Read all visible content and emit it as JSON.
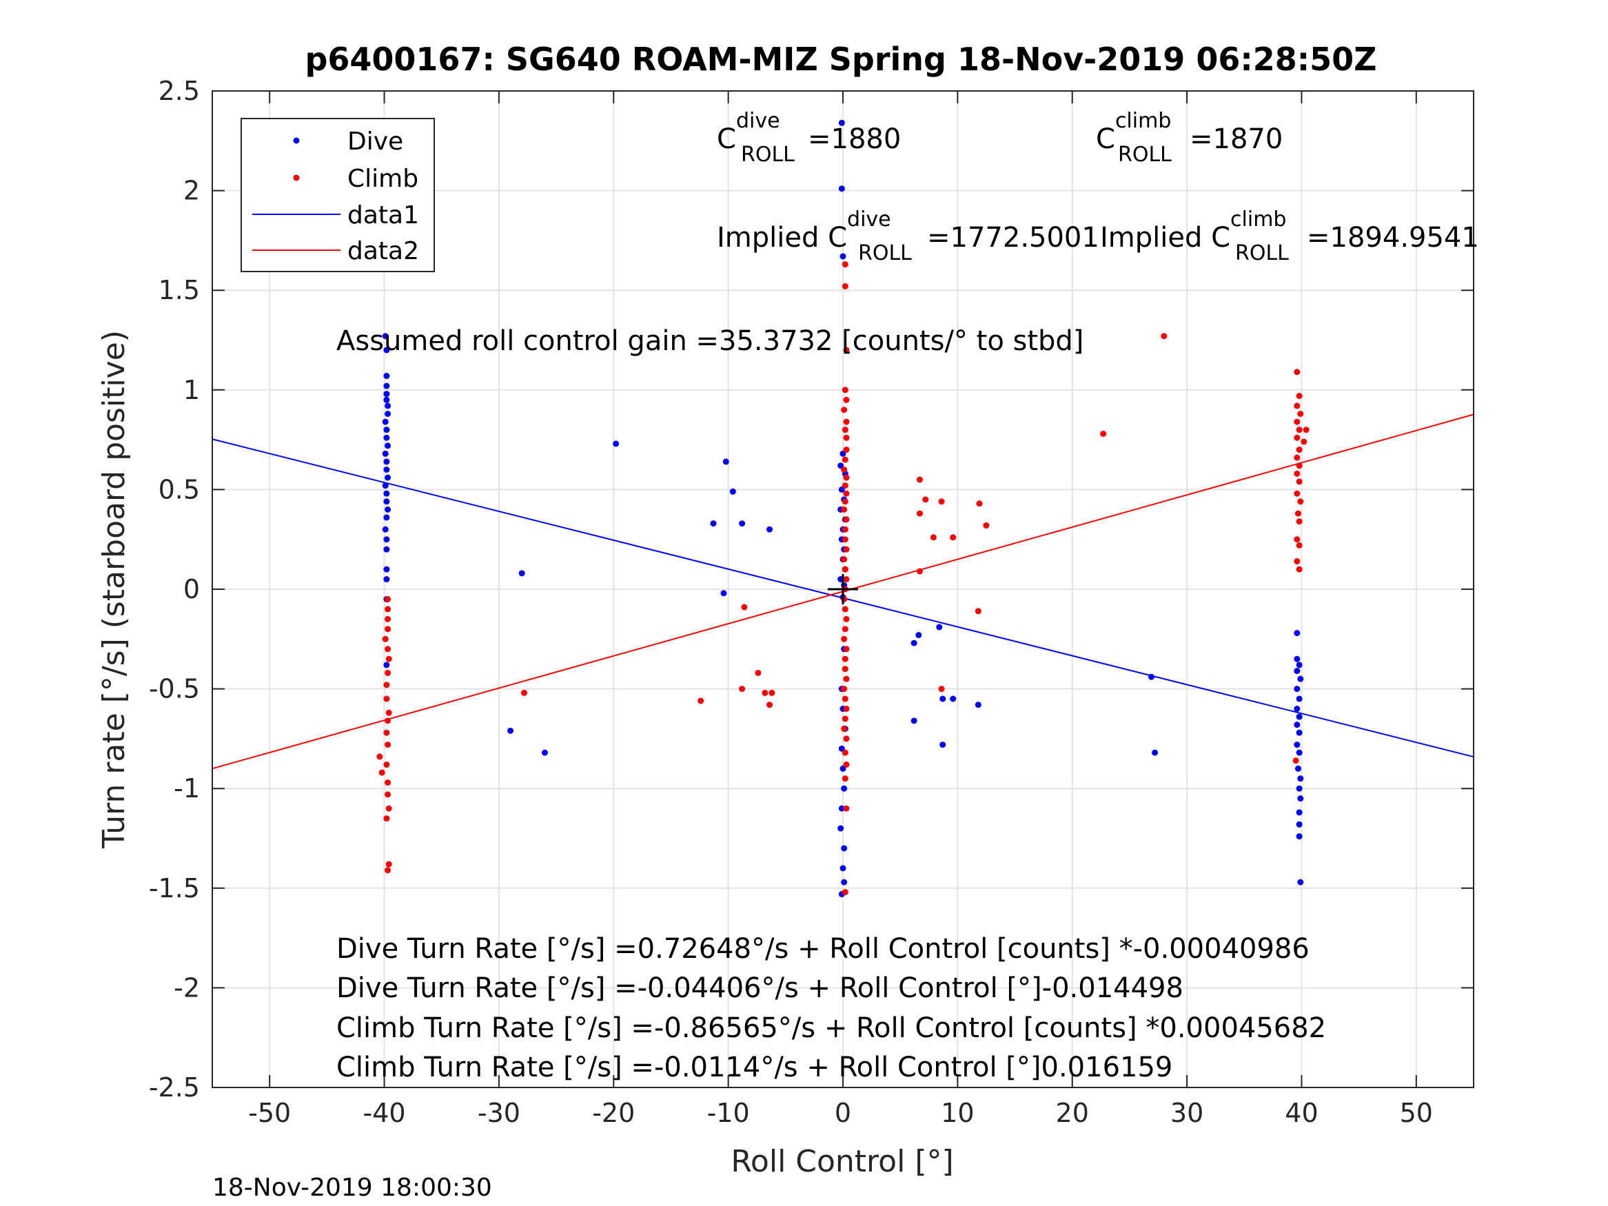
{
  "footer_timestamp": "18-Nov-2019 18:00:30",
  "annotations": {
    "c_dive_base": "C",
    "c_dive_sup": "dive",
    "c_dive_subscript": "ROLL",
    "c_dive_value": "=1880",
    "c_climb_base": "C",
    "c_climb_sup": "climb",
    "c_climb_subscript": "ROLL",
    "c_climb_value": "=1870",
    "implied_dive_prefix": "Implied C",
    "implied_dive_sup": "dive",
    "implied_dive_subscript": "ROLL",
    "implied_dive_value": "=1772.5001",
    "implied_climb_prefix": "Implied C",
    "implied_climb_sup": "climb",
    "implied_climb_subscript": "ROLL",
    "implied_climb_value": "=1894.9541",
    "gain": "Assumed roll control gain =35.3732 [counts/° to stbd]",
    "eq_dive_counts": "Dive Turn Rate [°/s] =0.72648°/s + Roll Control [counts] *-0.00040986",
    "eq_dive_deg": "Dive Turn Rate [°/s] =-0.04406°/s + Roll Control [°]-0.014498",
    "eq_climb_counts": "Climb Turn Rate [°/s] =-0.86565°/s + Roll Control [counts] *0.00045682",
    "eq_climb_deg": "Climb Turn Rate [°/s] =-0.0114°/s + Roll Control [°]0.016159"
  },
  "chart_data": {
    "type": "scatter",
    "title": "p6400167: SG640 ROAM-MIZ Spring 18-Nov-2019 06:28:50Z",
    "xlabel": "Roll Control [°]",
    "ylabel": "Turn rate [°/s] (starboard positive)",
    "xlim": [
      -55,
      55
    ],
    "ylim": [
      -2.5,
      2.5
    ],
    "xticks": [
      -50,
      -40,
      -30,
      -20,
      -10,
      0,
      10,
      20,
      30,
      40,
      50
    ],
    "yticks": [
      -2.5,
      -2,
      -1.5,
      -1,
      -0.5,
      0,
      0.5,
      1,
      1.5,
      2,
      2.5
    ],
    "xtick_labels": [
      "-50",
      "-40",
      "-30",
      "-20",
      "-10",
      "0",
      "10",
      "20",
      "30",
      "40",
      "50"
    ],
    "ytick_labels": [
      "-2.5",
      "-2",
      "-1.5",
      "-1",
      "-0.5",
      "0",
      "0.5",
      "1",
      "1.5",
      "2",
      "2.5"
    ],
    "grid": true,
    "legend_position": "top-left",
    "series": [
      {
        "name": "Dive",
        "kind": "points",
        "color": "#0000ff",
        "points": [
          [
            -39.9,
            1.27
          ],
          [
            -39.8,
            1.2
          ],
          [
            -39.8,
            1.07
          ],
          [
            -39.8,
            1.02
          ],
          [
            -39.8,
            0.98
          ],
          [
            -39.8,
            0.95
          ],
          [
            -39.7,
            0.92
          ],
          [
            -39.7,
            0.88
          ],
          [
            -39.9,
            0.84
          ],
          [
            -39.8,
            0.8
          ],
          [
            -39.8,
            0.76
          ],
          [
            -39.7,
            0.72
          ],
          [
            -39.9,
            0.68
          ],
          [
            -39.8,
            0.64
          ],
          [
            -39.8,
            0.6
          ],
          [
            -39.7,
            0.56
          ],
          [
            -39.9,
            0.52
          ],
          [
            -39.8,
            0.48
          ],
          [
            -39.8,
            0.44
          ],
          [
            -39.7,
            0.4
          ],
          [
            -39.8,
            0.36
          ],
          [
            -39.9,
            0.3
          ],
          [
            -39.8,
            0.25
          ],
          [
            -39.8,
            0.2
          ],
          [
            -39.8,
            0.1
          ],
          [
            -39.8,
            0.05
          ],
          [
            -39.8,
            -0.05
          ],
          [
            -39.8,
            -0.38
          ],
          [
            -28.0,
            0.08
          ],
          [
            -29.0,
            -0.71
          ],
          [
            -26.0,
            -0.82
          ],
          [
            -19.8,
            0.73
          ],
          [
            -10.2,
            0.64
          ],
          [
            -9.6,
            0.49
          ],
          [
            -11.3,
            0.33
          ],
          [
            -8.8,
            0.33
          ],
          [
            -6.4,
            0.3
          ],
          [
            -10.4,
            -0.02
          ],
          [
            -0.1,
            2.34
          ],
          [
            -0.1,
            2.01
          ],
          [
            0.0,
            1.67
          ],
          [
            0.0,
            0.68
          ],
          [
            -0.2,
            0.62
          ],
          [
            0.2,
            0.58
          ],
          [
            -0.1,
            0.5
          ],
          [
            0.1,
            0.45
          ],
          [
            -0.2,
            0.4
          ],
          [
            0.2,
            0.35
          ],
          [
            0.0,
            0.3
          ],
          [
            -0.1,
            0.25
          ],
          [
            0.1,
            0.2
          ],
          [
            0.0,
            0.15
          ],
          [
            0.2,
            0.1
          ],
          [
            -0.2,
            0.05
          ],
          [
            0.1,
            0.02
          ],
          [
            0.0,
            -0.04
          ],
          [
            0.1,
            -0.3
          ],
          [
            -0.1,
            -0.5
          ],
          [
            0.0,
            -0.6
          ],
          [
            0.2,
            -0.7
          ],
          [
            -0.1,
            -0.8
          ],
          [
            0.0,
            -0.9
          ],
          [
            0.1,
            -1.0
          ],
          [
            -0.1,
            -1.1
          ],
          [
            -0.2,
            -1.2
          ],
          [
            0.1,
            -1.3
          ],
          [
            0.0,
            -1.4
          ],
          [
            0.1,
            -1.47
          ],
          [
            -0.1,
            -1.53
          ],
          [
            6.2,
            -0.27
          ],
          [
            6.6,
            -0.23
          ],
          [
            8.4,
            -0.19
          ],
          [
            6.2,
            -0.66
          ],
          [
            8.7,
            -0.55
          ],
          [
            9.6,
            -0.55
          ],
          [
            11.8,
            -0.58
          ],
          [
            8.7,
            -0.78
          ],
          [
            26.9,
            -0.44
          ],
          [
            27.2,
            -0.82
          ],
          [
            39.6,
            -0.22
          ],
          [
            39.6,
            -0.35
          ],
          [
            39.8,
            -0.38
          ],
          [
            39.6,
            -0.41
          ],
          [
            39.9,
            -0.45
          ],
          [
            39.6,
            -0.5
          ],
          [
            39.8,
            -0.55
          ],
          [
            39.6,
            -0.6
          ],
          [
            39.8,
            -0.64
          ],
          [
            39.6,
            -0.68
          ],
          [
            39.8,
            -0.72
          ],
          [
            39.6,
            -0.78
          ],
          [
            39.8,
            -0.82
          ],
          [
            39.7,
            -0.9
          ],
          [
            39.9,
            -0.95
          ],
          [
            39.8,
            -1.0
          ],
          [
            39.9,
            -1.05
          ],
          [
            39.8,
            -1.12
          ],
          [
            39.8,
            -1.18
          ],
          [
            39.8,
            -1.24
          ],
          [
            39.9,
            -1.47
          ]
        ]
      },
      {
        "name": "Climb",
        "kind": "points",
        "color": "#ff0000",
        "points": [
          [
            -39.7,
            -0.05
          ],
          [
            -39.7,
            -0.1
          ],
          [
            -39.7,
            -0.15
          ],
          [
            -39.7,
            -0.2
          ],
          [
            -39.9,
            -0.25
          ],
          [
            -39.7,
            -0.3
          ],
          [
            -39.6,
            -0.35
          ],
          [
            -39.7,
            -0.42
          ],
          [
            -39.8,
            -0.48
          ],
          [
            -39.8,
            -0.55
          ],
          [
            -39.6,
            -0.62
          ],
          [
            -39.7,
            -0.66
          ],
          [
            -39.8,
            -0.72
          ],
          [
            -39.7,
            -0.78
          ],
          [
            -40.4,
            -0.84
          ],
          [
            -39.8,
            -0.88
          ],
          [
            -40.2,
            -0.92
          ],
          [
            -39.7,
            -0.97
          ],
          [
            -39.7,
            -1.03
          ],
          [
            -39.6,
            -1.1
          ],
          [
            -39.8,
            -1.15
          ],
          [
            -39.6,
            -1.38
          ],
          [
            -39.7,
            -1.41
          ],
          [
            -27.8,
            -0.52
          ],
          [
            -12.4,
            -0.56
          ],
          [
            -8.8,
            -0.5
          ],
          [
            -7.4,
            -0.42
          ],
          [
            -6.8,
            -0.52
          ],
          [
            -6.2,
            -0.52
          ],
          [
            -6.4,
            -0.58
          ],
          [
            -8.6,
            -0.09
          ],
          [
            0.2,
            1.63
          ],
          [
            0.2,
            1.52
          ],
          [
            0.3,
            1.2
          ],
          [
            0.2,
            1.0
          ],
          [
            0.3,
            0.95
          ],
          [
            0.1,
            0.9
          ],
          [
            0.3,
            0.84
          ],
          [
            0.2,
            0.8
          ],
          [
            0.3,
            0.76
          ],
          [
            0.3,
            0.7
          ],
          [
            0.2,
            0.65
          ],
          [
            0.1,
            0.6
          ],
          [
            0.3,
            0.56
          ],
          [
            0.2,
            0.52
          ],
          [
            0.3,
            0.48
          ],
          [
            0.2,
            0.44
          ],
          [
            0.1,
            0.4
          ],
          [
            0.3,
            0.35
          ],
          [
            0.2,
            0.3
          ],
          [
            0.2,
            0.25
          ],
          [
            0.3,
            0.2
          ],
          [
            0.1,
            0.15
          ],
          [
            0.2,
            0.1
          ],
          [
            0.3,
            0.05
          ],
          [
            0.2,
            0.0
          ],
          [
            0.1,
            -0.05
          ],
          [
            0.2,
            -0.1
          ],
          [
            0.3,
            -0.15
          ],
          [
            0.2,
            -0.2
          ],
          [
            0.1,
            -0.25
          ],
          [
            0.3,
            -0.3
          ],
          [
            0.2,
            -0.35
          ],
          [
            0.2,
            -0.4
          ],
          [
            0.3,
            -0.45
          ],
          [
            0.1,
            -0.5
          ],
          [
            0.2,
            -0.55
          ],
          [
            0.3,
            -0.6
          ],
          [
            0.2,
            -0.65
          ],
          [
            0.1,
            -0.7
          ],
          [
            0.3,
            -0.75
          ],
          [
            0.2,
            -0.82
          ],
          [
            0.3,
            -0.88
          ],
          [
            0.2,
            -0.95
          ],
          [
            0.3,
            -1.1
          ],
          [
            0.2,
            -1.52
          ],
          [
            6.7,
            0.55
          ],
          [
            7.2,
            0.45
          ],
          [
            8.6,
            0.44
          ],
          [
            6.7,
            0.38
          ],
          [
            7.9,
            0.26
          ],
          [
            9.6,
            0.26
          ],
          [
            11.9,
            0.43
          ],
          [
            12.5,
            0.32
          ],
          [
            6.7,
            0.09
          ],
          [
            11.8,
            -0.11
          ],
          [
            8.6,
            -0.5
          ],
          [
            22.7,
            0.78
          ],
          [
            28.0,
            1.27
          ],
          [
            39.6,
            1.09
          ],
          [
            39.8,
            0.97
          ],
          [
            39.6,
            0.92
          ],
          [
            39.9,
            0.88
          ],
          [
            39.6,
            0.84
          ],
          [
            39.8,
            0.8
          ],
          [
            40.4,
            0.8
          ],
          [
            39.6,
            0.76
          ],
          [
            40.2,
            0.74
          ],
          [
            39.8,
            0.7
          ],
          [
            39.6,
            0.66
          ],
          [
            39.8,
            0.62
          ],
          [
            39.6,
            0.58
          ],
          [
            39.8,
            0.54
          ],
          [
            39.6,
            0.48
          ],
          [
            39.9,
            0.44
          ],
          [
            39.7,
            0.38
          ],
          [
            39.8,
            0.34
          ],
          [
            39.6,
            0.25
          ],
          [
            39.8,
            0.22
          ],
          [
            39.6,
            0.14
          ],
          [
            39.8,
            0.1
          ],
          [
            39.5,
            -0.86
          ]
        ]
      },
      {
        "name": "data1",
        "kind": "line",
        "color": "#0000ff",
        "x": [
          -55,
          55
        ],
        "y": [
          0.753,
          -0.841
        ]
      },
      {
        "name": "data2",
        "kind": "line",
        "color": "#ff0000",
        "x": [
          -55,
          55
        ],
        "y": [
          -0.9,
          0.877
        ]
      }
    ],
    "markers": [
      {
        "type": "plus",
        "x": 0,
        "y": 0
      }
    ]
  }
}
